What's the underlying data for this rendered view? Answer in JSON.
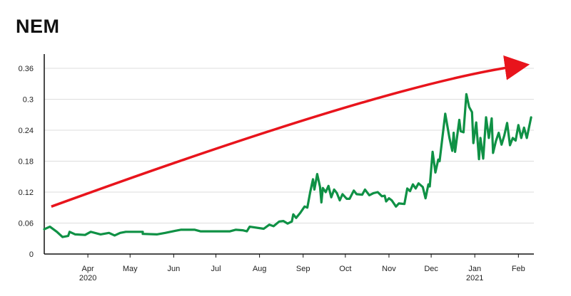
{
  "chart_data": {
    "type": "line",
    "title": "NEM",
    "xlabel": "",
    "ylabel": "",
    "ylim": [
      0,
      0.36
    ],
    "yticks": [
      0,
      0.06,
      0.12,
      0.18,
      0.24,
      0.3,
      0.36
    ],
    "ytick_labels": [
      "0",
      "0.06",
      "0.12",
      "0.18",
      "0.24",
      "0.3",
      "0.36"
    ],
    "xlim": [
      "2020-03-01",
      "2021-02-12"
    ],
    "xticks": [
      {
        "date": "2020-04-01",
        "label": "Apr",
        "sublabel": "2020"
      },
      {
        "date": "2020-05-01",
        "label": "May",
        "sublabel": ""
      },
      {
        "date": "2020-06-01",
        "label": "Jun",
        "sublabel": ""
      },
      {
        "date": "2020-07-01",
        "label": "Jul",
        "sublabel": ""
      },
      {
        "date": "2020-08-01",
        "label": "Aug",
        "sublabel": ""
      },
      {
        "date": "2020-09-01",
        "label": "Sep",
        "sublabel": ""
      },
      {
        "date": "2020-10-01",
        "label": "Oct",
        "sublabel": ""
      },
      {
        "date": "2020-11-01",
        "label": "Nov",
        "sublabel": ""
      },
      {
        "date": "2020-12-01",
        "label": "Dec",
        "sublabel": ""
      },
      {
        "date": "2021-01-01",
        "label": "Jan",
        "sublabel": "2021"
      },
      {
        "date": "2021-02-01",
        "label": "Feb",
        "sublabel": ""
      }
    ],
    "grid": true,
    "line_color": "#0f9145",
    "arrow_color": "#e8141c",
    "series": [
      {
        "points": [
          [
            "2020-03-01",
            0.048
          ],
          [
            "2020-03-05",
            0.053
          ],
          [
            "2020-03-10",
            0.043
          ],
          [
            "2020-03-14",
            0.033
          ],
          [
            "2020-03-18",
            0.035
          ],
          [
            "2020-03-19",
            0.043
          ],
          [
            "2020-03-23",
            0.038
          ],
          [
            "2020-03-30",
            0.037
          ],
          [
            "2020-04-03",
            0.043
          ],
          [
            "2020-04-10",
            0.038
          ],
          [
            "2020-04-16",
            0.041
          ],
          [
            "2020-04-20",
            0.036
          ],
          [
            "2020-04-24",
            0.041
          ],
          [
            "2020-04-28",
            0.043
          ],
          [
            "2020-05-10",
            0.043
          ],
          [
            "2020-05-10",
            0.039
          ],
          [
            "2020-05-20",
            0.038
          ],
          [
            "2020-05-26",
            0.041
          ],
          [
            "2020-06-02",
            0.045
          ],
          [
            "2020-06-06",
            0.047
          ],
          [
            "2020-06-10",
            0.047
          ],
          [
            "2020-06-16",
            0.047
          ],
          [
            "2020-06-20",
            0.044
          ],
          [
            "2020-06-26",
            0.044
          ],
          [
            "2020-07-06",
            0.044
          ],
          [
            "2020-07-11",
            0.044
          ],
          [
            "2020-07-15",
            0.047
          ],
          [
            "2020-07-20",
            0.046
          ],
          [
            "2020-07-23",
            0.044
          ],
          [
            "2020-07-25",
            0.053
          ],
          [
            "2020-08-04",
            0.049
          ],
          [
            "2020-08-08",
            0.057
          ],
          [
            "2020-08-11",
            0.054
          ],
          [
            "2020-08-15",
            0.063
          ],
          [
            "2020-08-18",
            0.064
          ],
          [
            "2020-08-21",
            0.059
          ],
          [
            "2020-08-24",
            0.063
          ],
          [
            "2020-08-25",
            0.077
          ],
          [
            "2020-08-27",
            0.07
          ],
          [
            "2020-08-30",
            0.08
          ],
          [
            "2020-09-02",
            0.092
          ],
          [
            "2020-09-04",
            0.09
          ],
          [
            "2020-09-06",
            0.12
          ],
          [
            "2020-09-08",
            0.145
          ],
          [
            "2020-09-09",
            0.125
          ],
          [
            "2020-09-11",
            0.155
          ],
          [
            "2020-09-13",
            0.13
          ],
          [
            "2020-09-14",
            0.1
          ],
          [
            "2020-09-15",
            0.128
          ],
          [
            "2020-09-17",
            0.12
          ],
          [
            "2020-09-19",
            0.132
          ],
          [
            "2020-09-21",
            0.11
          ],
          [
            "2020-09-23",
            0.125
          ],
          [
            "2020-09-25",
            0.118
          ],
          [
            "2020-09-27",
            0.104
          ],
          [
            "2020-09-29",
            0.116
          ],
          [
            "2020-10-02",
            0.107
          ],
          [
            "2020-10-04",
            0.107
          ],
          [
            "2020-10-07",
            0.123
          ],
          [
            "2020-10-09",
            0.116
          ],
          [
            "2020-10-13",
            0.115
          ],
          [
            "2020-10-15",
            0.125
          ],
          [
            "2020-10-18",
            0.114
          ],
          [
            "2020-10-21",
            0.118
          ],
          [
            "2020-10-24",
            0.12
          ],
          [
            "2020-10-27",
            0.112
          ],
          [
            "2020-10-29",
            0.113
          ],
          [
            "2020-10-30",
            0.102
          ],
          [
            "2020-11-01",
            0.108
          ],
          [
            "2020-11-03",
            0.104
          ],
          [
            "2020-11-06",
            0.092
          ],
          [
            "2020-11-08",
            0.098
          ],
          [
            "2020-11-12",
            0.097
          ],
          [
            "2020-11-14",
            0.127
          ],
          [
            "2020-11-16",
            0.122
          ],
          [
            "2020-11-18",
            0.135
          ],
          [
            "2020-11-20",
            0.127
          ],
          [
            "2020-11-22",
            0.137
          ],
          [
            "2020-11-25",
            0.13
          ],
          [
            "2020-11-27",
            0.108
          ],
          [
            "2020-11-29",
            0.135
          ],
          [
            "2020-11-30",
            0.131
          ],
          [
            "2020-12-02",
            0.198
          ],
          [
            "2020-12-04",
            0.158
          ],
          [
            "2020-12-06",
            0.183
          ],
          [
            "2020-12-07",
            0.18
          ],
          [
            "2020-12-11",
            0.272
          ],
          [
            "2020-12-14",
            0.225
          ],
          [
            "2020-12-16",
            0.2
          ],
          [
            "2020-12-17",
            0.235
          ],
          [
            "2020-12-18",
            0.198
          ],
          [
            "2020-12-21",
            0.26
          ],
          [
            "2020-12-22",
            0.238
          ],
          [
            "2020-12-24",
            0.236
          ],
          [
            "2020-12-26",
            0.31
          ],
          [
            "2020-12-28",
            0.285
          ],
          [
            "2020-12-30",
            0.275
          ],
          [
            "2020-12-31",
            0.215
          ],
          [
            "2021-01-02",
            0.255
          ],
          [
            "2021-01-04",
            0.184
          ],
          [
            "2021-01-05",
            0.225
          ],
          [
            "2021-01-07",
            0.185
          ],
          [
            "2021-01-09",
            0.265
          ],
          [
            "2021-01-11",
            0.225
          ],
          [
            "2021-01-13",
            0.263
          ],
          [
            "2021-01-14",
            0.196
          ],
          [
            "2021-01-16",
            0.219
          ],
          [
            "2021-01-18",
            0.235
          ],
          [
            "2021-01-20",
            0.212
          ],
          [
            "2021-01-22",
            0.23
          ],
          [
            "2021-01-24",
            0.254
          ],
          [
            "2021-01-26",
            0.211
          ],
          [
            "2021-01-28",
            0.225
          ],
          [
            "2021-01-30",
            0.22
          ],
          [
            "2021-02-01",
            0.25
          ],
          [
            "2021-02-03",
            0.225
          ],
          [
            "2021-02-05",
            0.245
          ],
          [
            "2021-02-07",
            0.225
          ],
          [
            "2021-02-10",
            0.265
          ]
        ]
      }
    ],
    "annotations": [
      {
        "type": "arrow",
        "description": "upward-trend-arrow",
        "from": [
          "2020-03-06",
          0.092
        ],
        "via": [
          "2020-11-01",
          0.33
        ],
        "to": [
          "2021-02-02",
          0.365
        ]
      }
    ]
  }
}
